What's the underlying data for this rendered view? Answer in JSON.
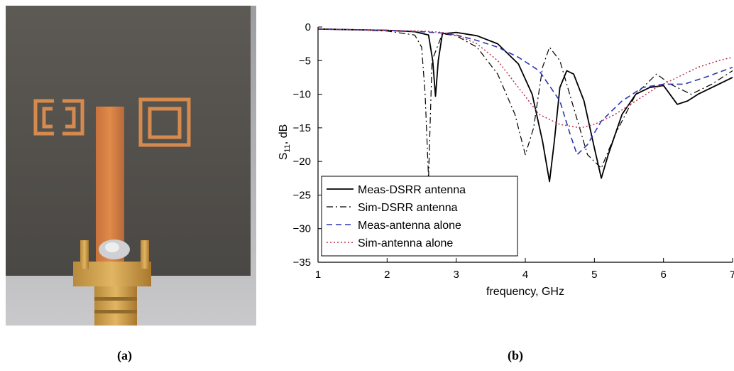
{
  "captions": {
    "a": "(a)",
    "b": "(b)"
  },
  "photo": {
    "description_icon": "antenna-pcb-photo"
  },
  "chart_data": {
    "type": "line",
    "xlabel": "frequency, GHz",
    "ylabel_main": "S",
    "ylabel_sub": "11",
    "ylabel_rest": ", dB",
    "xlim": [
      1,
      7
    ],
    "ylim": [
      -35,
      0
    ],
    "xticks": [
      1,
      2,
      3,
      4,
      5,
      6,
      7
    ],
    "yticks": [
      0,
      -5,
      -10,
      -15,
      -20,
      -25,
      -30,
      -35
    ],
    "ytick_labels": [
      "0",
      "-5",
      "-10",
      "-15",
      "-20",
      "-25",
      "-30",
      "-35"
    ],
    "grid": false,
    "legend_position": "lower-left",
    "series": [
      {
        "name": "Meas-DSRR antenna",
        "color": "#000000",
        "dash": "solid",
        "x": [
          1.0,
          1.5,
          2.0,
          2.4,
          2.6,
          2.66,
          2.7,
          2.74,
          2.8,
          3.0,
          3.3,
          3.6,
          3.9,
          4.1,
          4.25,
          4.35,
          4.42,
          4.5,
          4.6,
          4.7,
          4.85,
          5.0,
          5.1,
          5.2,
          5.4,
          5.6,
          5.8,
          6.0,
          6.2,
          6.35,
          6.5,
          6.8,
          7.0
        ],
        "y": [
          -0.3,
          -0.4,
          -0.5,
          -0.7,
          -1.2,
          -5.0,
          -10.3,
          -5.0,
          -1.0,
          -0.8,
          -1.3,
          -2.5,
          -5.5,
          -10.0,
          -17.0,
          -23.0,
          -17.0,
          -9.0,
          -6.5,
          -7.0,
          -11.0,
          -18.0,
          -22.5,
          -19.0,
          -13.0,
          -10.0,
          -9.0,
          -8.7,
          -11.5,
          -11.0,
          -10.0,
          -8.5,
          -7.5
        ]
      },
      {
        "name": "Sim-DSRR antenna",
        "color": "#000000",
        "dash": "dashdot",
        "x": [
          1.0,
          1.5,
          2.0,
          2.4,
          2.5,
          2.55,
          2.6,
          2.65,
          2.8,
          3.0,
          3.3,
          3.6,
          3.85,
          4.0,
          4.12,
          4.25,
          4.35,
          4.5,
          4.7,
          4.9,
          5.1,
          5.3,
          5.6,
          5.9,
          6.1,
          6.4,
          6.7,
          7.0
        ],
        "y": [
          -0.3,
          -0.4,
          -0.6,
          -1.2,
          -3.0,
          -10.0,
          -22.5,
          -5.0,
          -1.0,
          -1.3,
          -3.0,
          -7.0,
          -13.0,
          -19.0,
          -15.0,
          -6.0,
          -3.0,
          -5.0,
          -12.0,
          -19.0,
          -21.0,
          -16.0,
          -10.0,
          -7.0,
          -8.5,
          -10.0,
          -8.5,
          -6.5
        ]
      },
      {
        "name": "Meas-antenna alone",
        "color": "#2b35b8",
        "dash": "dashed",
        "x": [
          1.0,
          1.5,
          2.0,
          2.5,
          2.8,
          3.0,
          3.3,
          3.6,
          3.9,
          4.2,
          4.5,
          4.65,
          4.75,
          4.9,
          5.1,
          5.4,
          5.7,
          6.0,
          6.3,
          6.6,
          7.0
        ],
        "y": [
          -0.3,
          -0.4,
          -0.5,
          -0.7,
          -0.9,
          -1.2,
          -2.0,
          -3.0,
          -4.5,
          -6.5,
          -11.0,
          -16.0,
          -19.0,
          -17.5,
          -14.0,
          -11.0,
          -9.0,
          -8.5,
          -8.5,
          -7.5,
          -6.0
        ]
      },
      {
        "name": "Sim-antenna alone",
        "color": "#c0304a",
        "dash": "dotted",
        "x": [
          1.0,
          1.5,
          2.0,
          2.5,
          2.8,
          3.0,
          3.3,
          3.6,
          3.9,
          4.2,
          4.5,
          4.8,
          5.0,
          5.3,
          5.6,
          5.9,
          6.2,
          6.5,
          6.8,
          7.0
        ],
        "y": [
          -0.3,
          -0.4,
          -0.5,
          -0.6,
          -0.8,
          -1.2,
          -2.5,
          -5.0,
          -9.0,
          -13.0,
          -14.5,
          -15.0,
          -14.5,
          -13.0,
          -11.0,
          -9.0,
          -7.5,
          -6.0,
          -5.0,
          -4.5
        ]
      }
    ]
  }
}
